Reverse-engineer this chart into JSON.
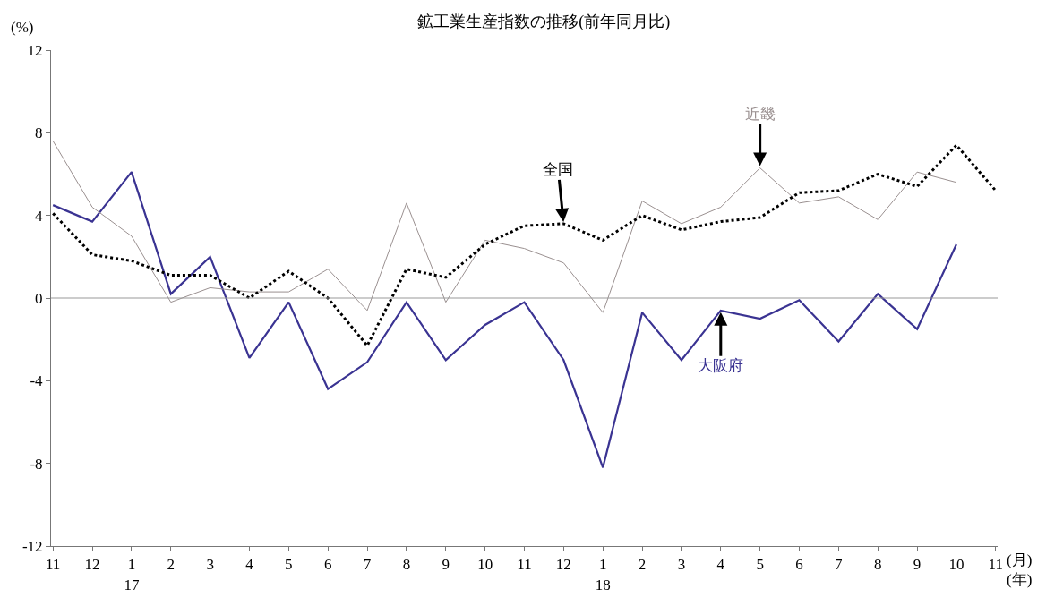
{
  "chart_data": {
    "type": "line",
    "title": "鉱工業生産指数の推移(前年同月比)",
    "ylabel": "(%)",
    "xlabel": "(月)\n(年)",
    "categories": [
      "11",
      "12",
      "1\n17",
      "2",
      "3",
      "4",
      "5",
      "6",
      "7",
      "8",
      "9",
      "10",
      "11",
      "12",
      "1\n18",
      "2",
      "3",
      "4",
      "5",
      "6",
      "7",
      "8",
      "9",
      "10",
      "11"
    ],
    "series": [
      {
        "name": "大阪府",
        "color": "#3a3392",
        "line_style": "solid",
        "values": [
          4.5,
          3.7,
          6.1,
          0.2,
          2.0,
          -2.9,
          -0.2,
          -4.4,
          -3.1,
          -0.2,
          -3.0,
          -1.3,
          -0.2,
          -3.0,
          -8.2,
          -0.7,
          -3.0,
          -0.6,
          -1.0,
          -0.1,
          -2.1,
          0.2,
          -1.5,
          2.6,
          null
        ]
      },
      {
        "name": "近畿",
        "color": "#9a9090",
        "line_style": "solid",
        "values": [
          7.6,
          4.4,
          3.0,
          -0.2,
          0.5,
          0.3,
          0.3,
          1.4,
          -0.6,
          4.6,
          -0.2,
          2.8,
          2.4,
          1.7,
          -0.7,
          4.7,
          3.6,
          4.4,
          6.3,
          4.6,
          4.9,
          3.8,
          6.1,
          5.6,
          null
        ]
      },
      {
        "name": "全国",
        "color": "#000000",
        "line_style": "dotted",
        "values": [
          4.1,
          2.1,
          1.8,
          1.1,
          1.1,
          0.0,
          1.3,
          0.0,
          -2.3,
          1.4,
          1.0,
          2.6,
          3.5,
          3.6,
          2.8,
          4.0,
          3.3,
          3.7,
          3.9,
          5.1,
          5.2,
          6.0,
          5.4,
          7.4,
          5.2
        ]
      }
    ],
    "ylim": [
      -12,
      12
    ],
    "yticks": [
      -12,
      -8,
      -4,
      0,
      4,
      8,
      12
    ],
    "ref_lines": [
      {
        "axis": "y",
        "value": 0,
        "color": "#999999"
      }
    ],
    "grid": false,
    "legend": false,
    "marker": "none"
  }
}
